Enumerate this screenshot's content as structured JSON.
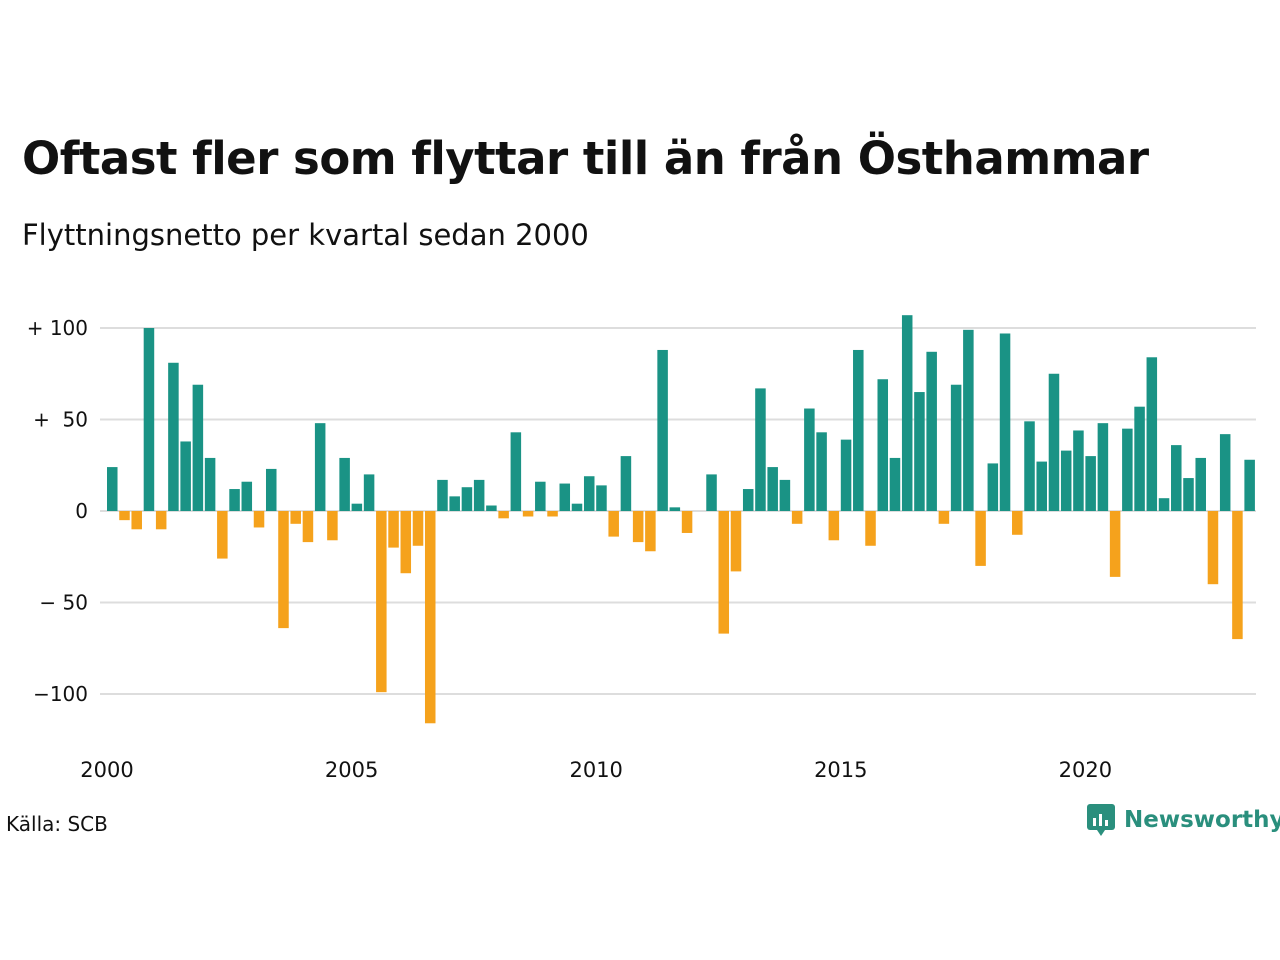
{
  "title": "Oftast fler som flyttar till än från Östhammar",
  "subtitle": "Flyttningsnetto per kvartal sedan 2000",
  "source": "Källa: SCB",
  "brand": "Newsworthy",
  "colors": {
    "positive": "#1a9385",
    "negative": "#f5a21c",
    "grid": "#dddddd"
  },
  "chart_data": {
    "type": "bar",
    "x_start": "2000 Q1",
    "x_ticks": [
      "2000",
      "2005",
      "2010",
      "2015",
      "2020"
    ],
    "y_ticks": [
      {
        "value": 100,
        "label": "+ 100"
      },
      {
        "value": 50,
        "label": "+  50"
      },
      {
        "value": 0,
        "label": "0"
      },
      {
        "value": -50,
        "label": "− 50"
      },
      {
        "value": -100,
        "label": "−100"
      }
    ],
    "ylim": [
      -120,
      110
    ],
    "grid": true,
    "values": [
      24,
      -5,
      -10,
      100,
      -10,
      81,
      38,
      69,
      29,
      -26,
      12,
      16,
      -9,
      23,
      -64,
      -7,
      -17,
      48,
      -16,
      29,
      4,
      20,
      -99,
      -20,
      -34,
      -19,
      -116,
      17,
      8,
      13,
      17,
      3,
      -4,
      43,
      -3,
      16,
      -3,
      15,
      4,
      19,
      14,
      -14,
      30,
      -17,
      -22,
      88,
      2,
      -12,
      0,
      20,
      -67,
      -33,
      12,
      67,
      24,
      17,
      -7,
      56,
      43,
      -16,
      39,
      88,
      -19,
      72,
      29,
      107,
      65,
      87,
      -7,
      69,
      99,
      -30,
      26,
      97,
      -13,
      49,
      27,
      75,
      33,
      44,
      30,
      48,
      -36,
      45,
      57,
      84,
      7,
      36,
      18,
      29,
      -40,
      42,
      -70,
      28
    ]
  }
}
